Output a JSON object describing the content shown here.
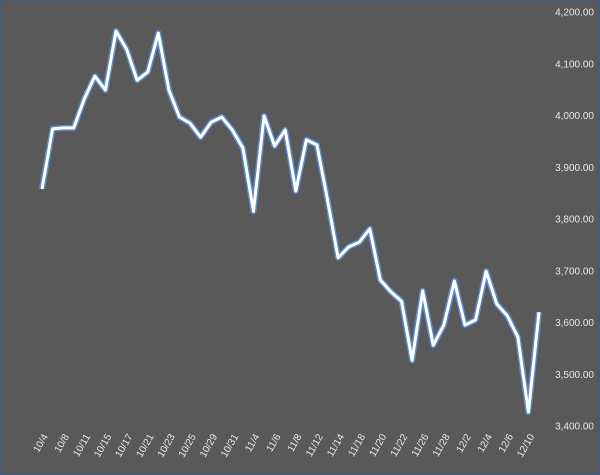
{
  "chart_data": {
    "type": "line",
    "categories": [
      "10/4",
      null,
      "10/8",
      null,
      "10/11",
      null,
      "10/15",
      null,
      "10/17",
      null,
      "10/21",
      null,
      "10/23",
      null,
      "10/25",
      null,
      "10/29",
      null,
      "10/31",
      null,
      "11/4",
      null,
      "11/6",
      null,
      "11/8",
      null,
      "11/12",
      null,
      "11/14",
      null,
      "11/18",
      null,
      "11/20",
      null,
      "11/22",
      null,
      "11/26",
      null,
      "11/28",
      null,
      "12/2",
      null,
      "12/4",
      null,
      "12/6",
      null,
      "12/10",
      null
    ],
    "values": [
      3860,
      3976,
      3978,
      3978,
      4034,
      4078,
      4051,
      4165,
      4130,
      4070,
      4086,
      4161,
      4051,
      3999,
      3987,
      3960,
      3989,
      3999,
      3974,
      3939,
      3817,
      4001,
      3943,
      3974,
      3856,
      3955,
      3945,
      3839,
      3727,
      3748,
      3757,
      3783,
      3684,
      3661,
      3643,
      3529,
      3663,
      3558,
      3597,
      3682,
      3597,
      3607,
      3701,
      3638,
      3615,
      3574,
      3429,
      3622
    ],
    "color": "#ffffff",
    "ylim": [
      3400,
      4200
    ],
    "yticks": [
      {
        "value": 3400,
        "label": "3,400.00"
      },
      {
        "value": 3500,
        "label": "3,500.00"
      },
      {
        "value": 3600,
        "label": "3,600.00"
      },
      {
        "value": 3700,
        "label": "3,700.00"
      },
      {
        "value": 3800,
        "label": "3,800.00"
      },
      {
        "value": 3900,
        "label": "3,900.00"
      },
      {
        "value": 4000,
        "label": "4,000.00"
      },
      {
        "value": 4100,
        "label": "4,100.00"
      },
      {
        "value": 4200,
        "label": "4,200.00"
      }
    ]
  }
}
